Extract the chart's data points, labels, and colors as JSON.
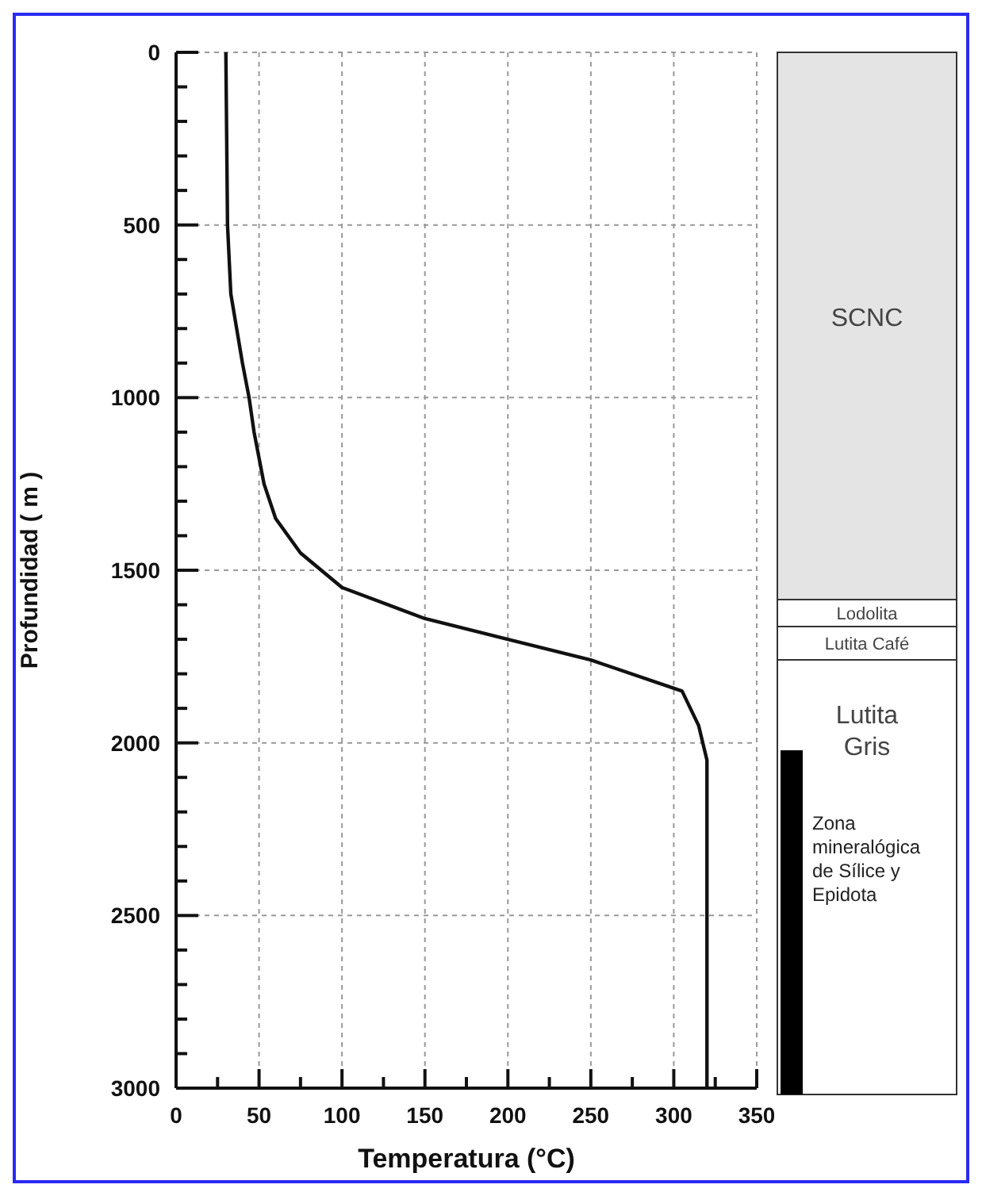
{
  "chart_data": [
    {
      "type": "line",
      "xlabel": "Temperatura (°C)",
      "ylabel": "Profundidad ( m )",
      "x": [
        30,
        31,
        33,
        40,
        44,
        47,
        53,
        60,
        75,
        100,
        150,
        200,
        250,
        305,
        315,
        320,
        320
      ],
      "series": [
        {
          "color": "#111111",
          "values": [
            0,
            500,
            700,
            900,
            1000,
            1100,
            1250,
            1350,
            1450,
            1550,
            1640,
            1700,
            1760,
            1850,
            1950,
            2050,
            3000
          ]
        }
      ],
      "xlim": [
        0,
        350
      ],
      "ylim": [
        3000,
        0
      ],
      "xticks": [
        0,
        {
          "value": 25,
          "label": null
        },
        50,
        {
          "value": 75,
          "label": null
        },
        100,
        {
          "value": 125,
          "label": null
        },
        150,
        {
          "value": 175,
          "label": null
        },
        200,
        {
          "value": 225,
          "label": null
        },
        250,
        {
          "value": 275,
          "label": null
        },
        300,
        {
          "value": 325,
          "label": null
        },
        350
      ],
      "yticks": [
        0,
        {
          "value": 100,
          "label": null
        },
        {
          "value": 200,
          "label": null
        },
        {
          "value": 300,
          "label": null
        },
        {
          "value": 400,
          "label": null
        },
        500,
        {
          "value": 600,
          "label": null
        },
        {
          "value": 700,
          "label": null
        },
        {
          "value": 800,
          "label": null
        },
        {
          "value": 900,
          "label": null
        },
        1000,
        {
          "value": 1100,
          "label": null
        },
        {
          "value": 1200,
          "label": null
        },
        {
          "value": 1300,
          "label": null
        },
        {
          "value": 1400,
          "label": null
        },
        1500,
        {
          "value": 1600,
          "label": null
        },
        {
          "value": 1700,
          "label": null
        },
        {
          "value": 1800,
          "label": null
        },
        {
          "value": 1900,
          "label": null
        },
        2000,
        {
          "value": 2100,
          "label": null
        },
        {
          "value": 2200,
          "label": null
        },
        {
          "value": 2300,
          "label": null
        },
        {
          "value": 2400,
          "label": null
        },
        2500,
        {
          "value": 2600,
          "label": null
        },
        {
          "value": 2700,
          "label": null
        },
        {
          "value": 2800,
          "label": null
        },
        {
          "value": 2900,
          "label": null
        },
        3000
      ],
      "grid": true,
      "marker": "none",
      "line_style": "solid"
    },
    {
      "type": "other",
      "annotations": [
        "SCNC",
        "Lodolita",
        "Lutita Café",
        "Lutita Gris",
        "Zona mineralógica de Sílice y Epidota"
      ]
    }
  ]
}
